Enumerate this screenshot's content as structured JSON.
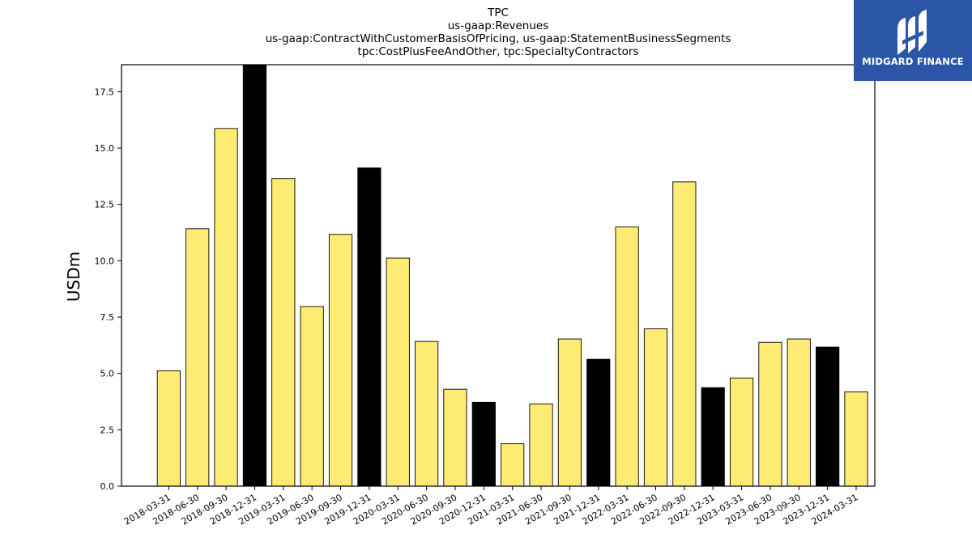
{
  "chart_data": {
    "type": "bar",
    "title_lines": [
      "TPC",
      "us-gaap:Revenues",
      "us-gaap:ContractWithCustomerBasisOfPricing, us-gaap:StatementBusinessSegments",
      "tpc:CostPlusFeeAndOther, tpc:SpecialtyContractors"
    ],
    "ylabel": "USDm",
    "xlabel": "",
    "ylim": [
      0,
      18.7
    ],
    "yticks": [
      0.0,
      2.5,
      5.0,
      7.5,
      10.0,
      12.5,
      15.0,
      17.5
    ],
    "ytick_labels": [
      "0.0",
      "2.5",
      "5.0",
      "7.5",
      "10.0",
      "12.5",
      "15.0",
      "17.5"
    ],
    "categories": [
      "2018-03-31",
      "2018-06-30",
      "2018-09-30",
      "2018-12-31",
      "2019-03-31",
      "2019-06-30",
      "2019-09-30",
      "2019-12-31",
      "2020-03-31",
      "2020-06-30",
      "2020-09-30",
      "2020-12-31",
      "2021-03-31",
      "2021-06-30",
      "2021-09-30",
      "2021-12-31",
      "2022-03-31",
      "2022-06-30",
      "2022-09-30",
      "2022-12-31",
      "2023-03-31",
      "2023-06-30",
      "2023-09-30",
      "2023-12-31",
      "2024-03-31"
    ],
    "values": [
      5.12,
      11.42,
      15.87,
      18.7,
      13.65,
      7.97,
      11.17,
      14.12,
      10.12,
      6.42,
      4.3,
      3.72,
      1.88,
      3.65,
      6.53,
      5.63,
      11.5,
      6.98,
      13.5,
      4.37,
      4.8,
      6.38,
      6.53,
      6.17,
      4.18
    ],
    "highlight": [
      false,
      false,
      false,
      true,
      false,
      false,
      false,
      true,
      false,
      false,
      false,
      true,
      false,
      false,
      false,
      true,
      false,
      false,
      false,
      true,
      false,
      false,
      false,
      true,
      false
    ],
    "colors": {
      "bar": "#feeb74",
      "highlight": "#000000",
      "edge": "#000000"
    }
  },
  "logo": {
    "text": "MIDGARD FINANCE",
    "bg": "#2b56a8"
  }
}
